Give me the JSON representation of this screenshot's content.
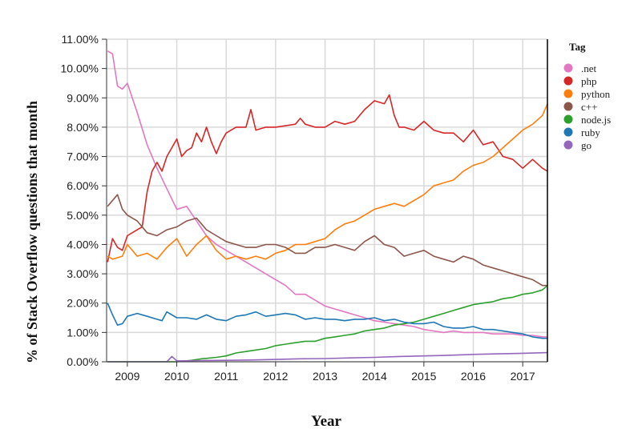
{
  "chart_data": {
    "type": "line",
    "xlabel": "Year",
    "ylabel": "% of Stack Overflow questions that month",
    "xlim": [
      2008.58,
      2017.5
    ],
    "ylim": [
      0,
      11
    ],
    "x_ticks": [
      "2009",
      "2010",
      "2011",
      "2012",
      "2013",
      "2014",
      "2015",
      "2016",
      "2017"
    ],
    "y_ticks": [
      "0.00%",
      "1.00%",
      "2.00%",
      "3.00%",
      "4.00%",
      "5.00%",
      "6.00%",
      "7.00%",
      "8.00%",
      "9.00%",
      "10.00%",
      "11.00%"
    ],
    "grid": true,
    "legend_title": "Tag",
    "legend_position": "right",
    "series": [
      {
        "name": ".net",
        "color": "#e377c2",
        "x": [
          2008.6,
          2008.7,
          2008.8,
          2008.9,
          2009.0,
          2009.2,
          2009.4,
          2009.6,
          2009.8,
          2010.0,
          2010.2,
          2010.4,
          2010.6,
          2010.8,
          2011.0,
          2011.2,
          2011.4,
          2011.6,
          2011.8,
          2012.0,
          2012.2,
          2012.4,
          2012.6,
          2012.8,
          2013.0,
          2013.2,
          2013.4,
          2013.6,
          2013.8,
          2014.0,
          2014.2,
          2014.4,
          2014.6,
          2014.8,
          2015.0,
          2015.2,
          2015.4,
          2015.6,
          2015.8,
          2016.0,
          2016.2,
          2016.4,
          2016.6,
          2016.8,
          2017.0,
          2017.2,
          2017.4,
          2017.5
        ],
        "y": [
          10.6,
          10.5,
          9.4,
          9.3,
          9.5,
          8.5,
          7.4,
          6.6,
          5.9,
          5.2,
          5.3,
          4.8,
          4.3,
          4.0,
          3.8,
          3.6,
          3.4,
          3.2,
          3.0,
          2.8,
          2.6,
          2.3,
          2.3,
          2.1,
          1.9,
          1.8,
          1.7,
          1.6,
          1.5,
          1.4,
          1.35,
          1.3,
          1.25,
          1.2,
          1.1,
          1.05,
          1.0,
          1.05,
          1.0,
          1.0,
          1.0,
          0.95,
          0.95,
          0.95,
          0.9,
          0.9,
          0.85,
          0.85
        ]
      },
      {
        "name": "php",
        "color": "#d62728",
        "x": [
          2008.6,
          2008.7,
          2008.8,
          2008.9,
          2009.0,
          2009.2,
          2009.3,
          2009.4,
          2009.5,
          2009.6,
          2009.7,
          2009.8,
          2009.9,
          2010.0,
          2010.1,
          2010.2,
          2010.3,
          2010.4,
          2010.5,
          2010.6,
          2010.7,
          2010.8,
          2010.9,
          2011.0,
          2011.2,
          2011.4,
          2011.5,
          2011.6,
          2011.8,
          2012.0,
          2012.2,
          2012.4,
          2012.5,
          2012.6,
          2012.8,
          2013.0,
          2013.2,
          2013.4,
          2013.6,
          2013.8,
          2014.0,
          2014.2,
          2014.3,
          2014.4,
          2014.5,
          2014.6,
          2014.8,
          2015.0,
          2015.2,
          2015.4,
          2015.6,
          2015.8,
          2016.0,
          2016.2,
          2016.4,
          2016.6,
          2016.8,
          2017.0,
          2017.2,
          2017.4,
          2017.5
        ],
        "y": [
          3.4,
          4.2,
          3.9,
          3.8,
          4.3,
          4.5,
          4.6,
          5.8,
          6.5,
          6.8,
          6.5,
          7.0,
          7.3,
          7.6,
          7.0,
          7.2,
          7.3,
          7.8,
          7.5,
          8.0,
          7.5,
          7.1,
          7.5,
          7.8,
          8.0,
          8.0,
          8.6,
          7.9,
          8.0,
          8.0,
          8.05,
          8.1,
          8.3,
          8.1,
          8.0,
          8.0,
          8.2,
          8.1,
          8.2,
          8.6,
          8.9,
          8.8,
          9.1,
          8.4,
          8.0,
          8.0,
          7.9,
          8.2,
          7.9,
          7.8,
          7.8,
          7.5,
          7.9,
          7.4,
          7.5,
          7.0,
          6.9,
          6.6,
          6.9,
          6.6,
          6.5
        ]
      },
      {
        "name": "python",
        "color": "#ff7f0e",
        "x": [
          2008.6,
          2008.7,
          2008.9,
          2009.0,
          2009.2,
          2009.4,
          2009.6,
          2009.8,
          2010.0,
          2010.2,
          2010.4,
          2010.6,
          2010.8,
          2011.0,
          2011.2,
          2011.4,
          2011.6,
          2011.8,
          2012.0,
          2012.2,
          2012.4,
          2012.6,
          2012.8,
          2013.0,
          2013.2,
          2013.4,
          2013.6,
          2013.8,
          2014.0,
          2014.2,
          2014.4,
          2014.6,
          2014.8,
          2015.0,
          2015.2,
          2015.4,
          2015.6,
          2015.8,
          2016.0,
          2016.2,
          2016.4,
          2016.6,
          2016.8,
          2017.0,
          2017.2,
          2017.4,
          2017.5
        ],
        "y": [
          3.6,
          3.5,
          3.6,
          4.0,
          3.6,
          3.7,
          3.5,
          3.9,
          4.2,
          3.6,
          4.0,
          4.3,
          3.8,
          3.5,
          3.6,
          3.5,
          3.6,
          3.5,
          3.7,
          3.8,
          4.0,
          4.0,
          4.1,
          4.2,
          4.5,
          4.7,
          4.8,
          5.0,
          5.2,
          5.3,
          5.4,
          5.3,
          5.5,
          5.7,
          6.0,
          6.1,
          6.2,
          6.5,
          6.7,
          6.8,
          7.0,
          7.3,
          7.6,
          7.9,
          8.1,
          8.4,
          8.8
        ]
      },
      {
        "name": "c++",
        "color": "#8c564b",
        "x": [
          2008.6,
          2008.8,
          2008.9,
          2009.0,
          2009.2,
          2009.4,
          2009.6,
          2009.8,
          2010.0,
          2010.2,
          2010.4,
          2010.6,
          2010.8,
          2011.0,
          2011.2,
          2011.4,
          2011.6,
          2011.8,
          2012.0,
          2012.2,
          2012.4,
          2012.6,
          2012.8,
          2013.0,
          2013.2,
          2013.4,
          2013.6,
          2013.8,
          2014.0,
          2014.2,
          2014.4,
          2014.6,
          2014.8,
          2015.0,
          2015.2,
          2015.4,
          2015.6,
          2015.8,
          2016.0,
          2016.2,
          2016.4,
          2016.6,
          2016.8,
          2017.0,
          2017.2,
          2017.4,
          2017.5
        ],
        "y": [
          5.3,
          5.7,
          5.2,
          5.0,
          4.8,
          4.4,
          4.3,
          4.5,
          4.6,
          4.8,
          4.9,
          4.5,
          4.3,
          4.1,
          4.0,
          3.9,
          3.9,
          4.0,
          4.0,
          3.9,
          3.7,
          3.7,
          3.9,
          3.9,
          4.0,
          3.9,
          3.8,
          4.1,
          4.3,
          4.0,
          3.9,
          3.6,
          3.7,
          3.8,
          3.6,
          3.5,
          3.4,
          3.6,
          3.5,
          3.3,
          3.2,
          3.1,
          3.0,
          2.9,
          2.8,
          2.6,
          2.6
        ]
      },
      {
        "name": "node.js",
        "color": "#2ca02c",
        "x": [
          2008.6,
          2009.0,
          2009.5,
          2010.0,
          2010.3,
          2010.5,
          2010.8,
          2011.0,
          2011.2,
          2011.4,
          2011.6,
          2011.8,
          2012.0,
          2012.2,
          2012.4,
          2012.6,
          2012.8,
          2013.0,
          2013.2,
          2013.4,
          2013.6,
          2013.8,
          2014.0,
          2014.2,
          2014.4,
          2014.6,
          2014.8,
          2015.0,
          2015.2,
          2015.4,
          2015.6,
          2015.8,
          2016.0,
          2016.2,
          2016.4,
          2016.6,
          2016.8,
          2017.0,
          2017.2,
          2017.4,
          2017.5
        ],
        "y": [
          0.0,
          0.0,
          0.0,
          0.0,
          0.05,
          0.1,
          0.15,
          0.2,
          0.3,
          0.35,
          0.4,
          0.45,
          0.55,
          0.6,
          0.65,
          0.7,
          0.7,
          0.8,
          0.85,
          0.9,
          0.95,
          1.05,
          1.1,
          1.15,
          1.25,
          1.3,
          1.35,
          1.45,
          1.55,
          1.65,
          1.75,
          1.85,
          1.95,
          2.0,
          2.05,
          2.15,
          2.2,
          2.3,
          2.35,
          2.45,
          2.6
        ]
      },
      {
        "name": "ruby",
        "color": "#1f77b4",
        "x": [
          2008.6,
          2008.7,
          2008.8,
          2008.9,
          2009.0,
          2009.2,
          2009.4,
          2009.6,
          2009.7,
          2009.8,
          2010.0,
          2010.2,
          2010.4,
          2010.6,
          2010.8,
          2011.0,
          2011.2,
          2011.4,
          2011.6,
          2011.8,
          2012.0,
          2012.2,
          2012.4,
          2012.6,
          2012.8,
          2013.0,
          2013.2,
          2013.4,
          2013.6,
          2013.8,
          2014.0,
          2014.2,
          2014.4,
          2014.6,
          2014.8,
          2015.0,
          2015.2,
          2015.4,
          2015.6,
          2015.8,
          2016.0,
          2016.2,
          2016.4,
          2016.6,
          2016.8,
          2017.0,
          2017.2,
          2017.4,
          2017.5
        ],
        "y": [
          2.0,
          1.6,
          1.25,
          1.3,
          1.55,
          1.65,
          1.55,
          1.45,
          1.4,
          1.7,
          1.5,
          1.5,
          1.45,
          1.6,
          1.45,
          1.4,
          1.55,
          1.6,
          1.7,
          1.55,
          1.6,
          1.65,
          1.6,
          1.45,
          1.5,
          1.45,
          1.45,
          1.4,
          1.45,
          1.45,
          1.5,
          1.4,
          1.45,
          1.35,
          1.3,
          1.3,
          1.35,
          1.2,
          1.15,
          1.15,
          1.2,
          1.1,
          1.1,
          1.05,
          1.0,
          0.95,
          0.85,
          0.8,
          0.8
        ]
      },
      {
        "name": "go",
        "color": "#9467bd",
        "x": [
          2008.6,
          2009.0,
          2009.5,
          2009.8,
          2009.9,
          2010.0,
          2010.5,
          2011.0,
          2011.5,
          2012.0,
          2012.5,
          2013.0,
          2013.5,
          2014.0,
          2014.5,
          2015.0,
          2015.5,
          2016.0,
          2016.5,
          2017.0,
          2017.5
        ],
        "y": [
          0.0,
          0.0,
          0.0,
          0.0,
          0.18,
          0.03,
          0.04,
          0.05,
          0.06,
          0.08,
          0.1,
          0.11,
          0.13,
          0.15,
          0.18,
          0.2,
          0.22,
          0.25,
          0.27,
          0.29,
          0.31
        ]
      }
    ]
  }
}
